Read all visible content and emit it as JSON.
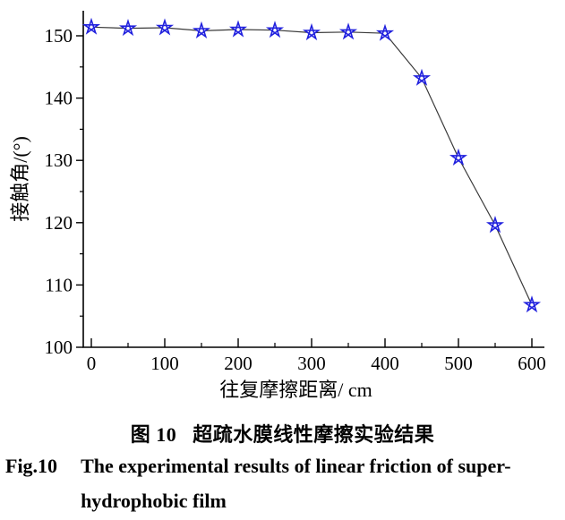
{
  "figure": {
    "caption_zh_label": "图 10",
    "caption_zh_text": "超疏水膜线性摩擦实验结果",
    "caption_en_label": "Fig.10",
    "caption_en_line1": "The experimental results of linear friction of super-",
    "caption_en_line2": "hydrophobic film"
  },
  "chart_data": {
    "type": "line",
    "title": "",
    "xlabel": "往复摩擦距离/ cm",
    "ylabel": "接触角/(°)",
    "x": [
      0,
      50,
      100,
      150,
      200,
      250,
      300,
      350,
      400,
      450,
      500,
      550,
      600
    ],
    "series": [
      {
        "name": "contact-angle",
        "values": [
          151.4,
          151.2,
          151.3,
          150.8,
          151.0,
          150.9,
          150.5,
          150.6,
          150.4,
          143.2,
          130.4,
          119.6,
          106.8
        ]
      }
    ],
    "xlim": [
      -12,
      617
    ],
    "ylim": [
      100,
      154
    ],
    "x_major_ticks": [
      0,
      100,
      200,
      300,
      400,
      500,
      600
    ],
    "x_minor_ticks": [
      50,
      150,
      250,
      350,
      450,
      550
    ],
    "y_major_ticks": [
      100,
      110,
      120,
      130,
      140,
      150
    ],
    "y_minor_ticks": [
      105,
      115,
      125,
      135,
      145
    ],
    "x_tick_labels": [
      "0",
      "100",
      "200",
      "300",
      "400",
      "500",
      "600"
    ],
    "y_tick_labels": [
      "100",
      "110",
      "120",
      "130",
      "140",
      "150"
    ],
    "grid": false,
    "legend": "none",
    "marker": "open-star",
    "marker_color": "#2121DE",
    "marker_fill": "#ffffff",
    "line_color": "#3a3a3a",
    "axis_color": "#000000"
  }
}
